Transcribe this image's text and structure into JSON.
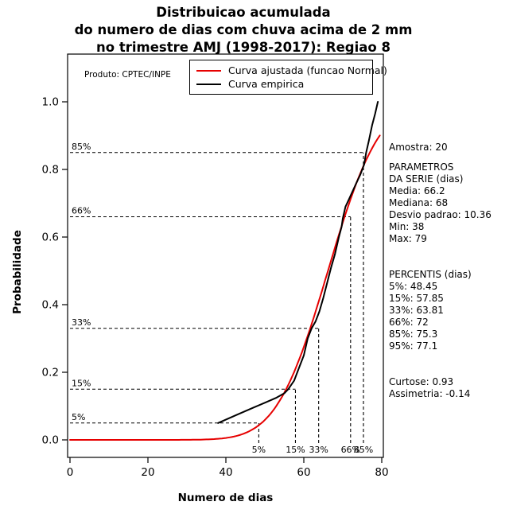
{
  "title": {
    "line1": "Distribuicao acumulada",
    "line2": "do numero de dias com chuva acima de 2 mm",
    "line3": "no trimestre AMJ (1998-2017): Regiao 8"
  },
  "axes": {
    "x_label": "Numero de dias",
    "y_label": "Probabilidade"
  },
  "legend": {
    "product": "Produto: CPTEC/INPE",
    "items": [
      {
        "label": "Curva ajustada (funcao Normal)",
        "color": "#e60000"
      },
      {
        "label": "Curva empirica",
        "color": "#000000"
      }
    ]
  },
  "stats_panel": {
    "amostra": "Amostra: 20",
    "parametros_header1": "PARAMETROS",
    "parametros_header2": "DA SERIE (dias)",
    "parametros": [
      "Media: 66.2",
      "Mediana: 68",
      "Desvio padrao: 10.36",
      "Min: 38",
      "Max: 79"
    ],
    "percentis_header": "PERCENTIS (dias)",
    "percentis": [
      "5%: 48.45",
      "15%: 57.85",
      "33%: 63.81",
      "66%: 72",
      "85%: 75.3",
      "95%: 77.1"
    ],
    "curtose": "Curtose: 0.93",
    "assimetria": "Assimetria: -0.14"
  },
  "chart_data": {
    "type": "line",
    "title": "Distribuicao acumulada do numero de dias com chuva acima de 2 mm no trimestre AMJ (1998-2017): Regiao 8",
    "xlabel": "Numero de dias",
    "ylabel": "Probabilidade",
    "xlim": [
      0,
      80
    ],
    "ylim": [
      0,
      1
    ],
    "xticks": [
      0,
      20,
      40,
      60,
      80
    ],
    "yticks": [
      0.0,
      0.2,
      0.4,
      0.6,
      0.8,
      1.0
    ],
    "grid": false,
    "legend_position": "top-inside",
    "sample_size": 20,
    "series": [
      {
        "name": "Curva ajustada (funcao Normal)",
        "color": "#e60000",
        "model": "normal_cdf",
        "mean": 66.2,
        "sd": 10.36,
        "x_range": [
          0,
          79.5
        ]
      },
      {
        "name": "Curva empirica",
        "color": "#000000",
        "points": [
          [
            38,
            0.05
          ],
          [
            43,
            0.075
          ],
          [
            47,
            0.095
          ],
          [
            50,
            0.11
          ],
          [
            53,
            0.125
          ],
          [
            55,
            0.138
          ],
          [
            56,
            0.15
          ],
          [
            57.5,
            0.175
          ],
          [
            58,
            0.19
          ],
          [
            59,
            0.22
          ],
          [
            60,
            0.25
          ],
          [
            61,
            0.3
          ],
          [
            62,
            0.33
          ],
          [
            63,
            0.35
          ],
          [
            64,
            0.38
          ],
          [
            65,
            0.42
          ],
          [
            66,
            0.465
          ],
          [
            67,
            0.51
          ],
          [
            68,
            0.55
          ],
          [
            69,
            0.6
          ],
          [
            69.7,
            0.63
          ],
          [
            70,
            0.655
          ],
          [
            70.7,
            0.69
          ],
          [
            71.5,
            0.71
          ],
          [
            72.5,
            0.735
          ],
          [
            73.5,
            0.76
          ],
          [
            74.5,
            0.785
          ],
          [
            75.5,
            0.815
          ],
          [
            76,
            0.85
          ],
          [
            76.7,
            0.885
          ],
          [
            77.5,
            0.93
          ],
          [
            78.3,
            0.965
          ],
          [
            79,
            1.0
          ]
        ]
      }
    ],
    "percentile_guides": [
      {
        "label": "5%",
        "day": 48.45,
        "prob": 0.05
      },
      {
        "label": "15%",
        "day": 57.85,
        "prob": 0.15
      },
      {
        "label": "33%",
        "day": 63.81,
        "prob": 0.33
      },
      {
        "label": "66%",
        "day": 72,
        "prob": 0.66
      },
      {
        "label": "85%",
        "day": 75.3,
        "prob": 0.85
      }
    ]
  }
}
